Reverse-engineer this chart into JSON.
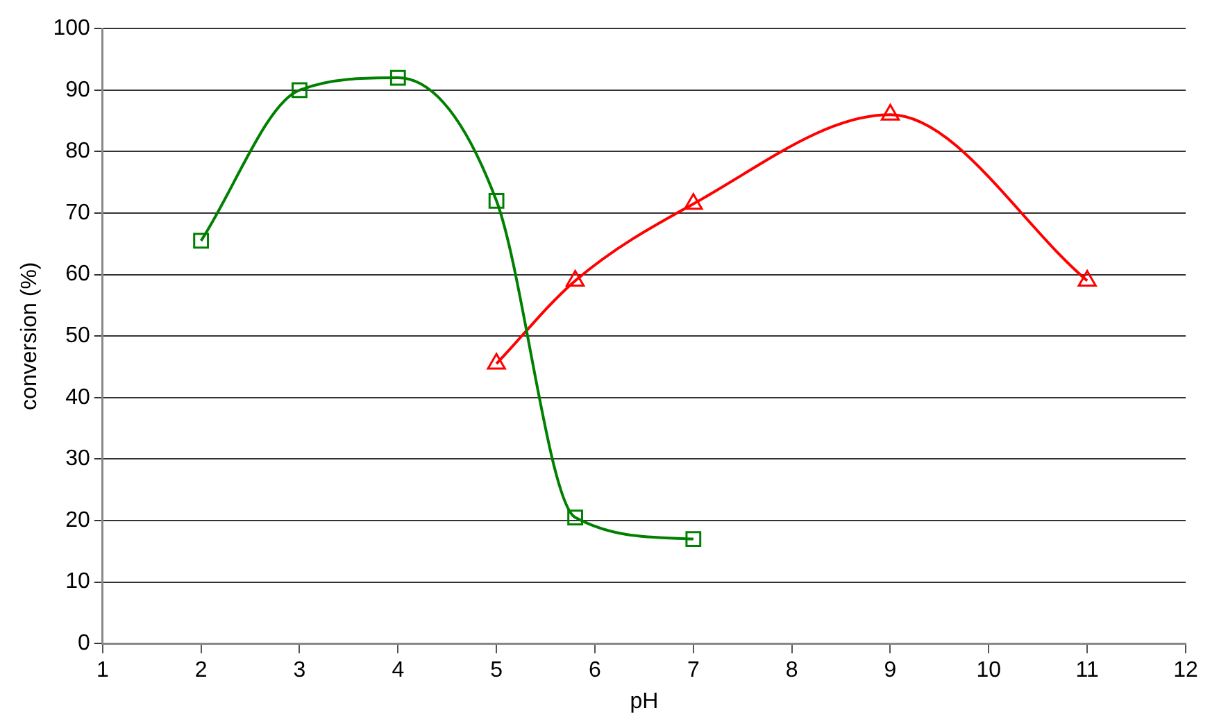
{
  "chart_data": {
    "type": "line",
    "xlabel": "pH",
    "ylabel": "conversion (%)",
    "series": [
      {
        "color": "#008000",
        "marker": "square",
        "x": [
          2,
          3,
          4,
          5,
          5.8,
          7
        ],
        "values": [
          65.5,
          90,
          92,
          72,
          20.5,
          17
        ]
      },
      {
        "color": "#ff0000",
        "marker": "triangle",
        "x": [
          5,
          5.8,
          7,
          9,
          11
        ],
        "values": [
          45.5,
          59,
          71.5,
          86,
          59
        ]
      }
    ],
    "xlim": [
      1,
      12
    ],
    "xticks": [
      1,
      2,
      3,
      4,
      5,
      6,
      7,
      8,
      9,
      10,
      11,
      12
    ],
    "ylim": [
      0,
      100
    ],
    "yticks": [
      0,
      10,
      20,
      30,
      40,
      50,
      60,
      70,
      80,
      90,
      100
    ],
    "grid": "y",
    "legend": false
  }
}
